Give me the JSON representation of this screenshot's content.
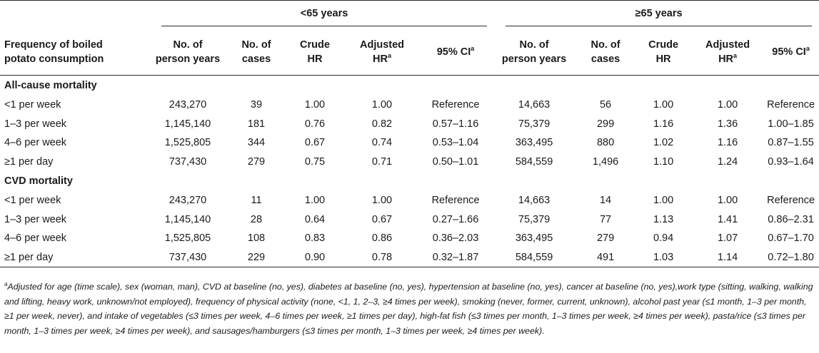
{
  "groups": {
    "under65": "<65 years",
    "over65": "≥65 years"
  },
  "headers": {
    "frequency": [
      "Frequency of boiled",
      "potato consumption"
    ],
    "person_years": [
      "No. of",
      "person years"
    ],
    "cases": [
      "No. of",
      "cases"
    ],
    "crude": [
      "Crude",
      "HR"
    ],
    "adjusted": [
      "Adjusted",
      "HR"
    ],
    "adjusted_sup": "a",
    "ci": "95% CI",
    "ci_sup": "a"
  },
  "sections": [
    {
      "title": "All-cause mortality",
      "rows": [
        {
          "label": "<1 per week",
          "u65": [
            "243,270",
            "39",
            "1.00",
            "1.00",
            "Reference"
          ],
          "o65": [
            "14,663",
            "56",
            "1.00",
            "1.00",
            "Reference"
          ]
        },
        {
          "label": "1–3 per week",
          "u65": [
            "1,145,140",
            "181",
            "0.76",
            "0.82",
            "0.57–1.16"
          ],
          "o65": [
            "75,379",
            "299",
            "1.16",
            "1.36",
            "1.00–1.85"
          ]
        },
        {
          "label": "4–6 per week",
          "u65": [
            "1,525,805",
            "344",
            "0.67",
            "0.74",
            "0.53–1.04"
          ],
          "o65": [
            "363,495",
            "880",
            "1.02",
            "1.16",
            "0.87–1.55"
          ]
        },
        {
          "label": "≥1 per day",
          "u65": [
            "737,430",
            "279",
            "0.75",
            "0.71",
            "0.50–1.01"
          ],
          "o65": [
            "584,559",
            "1,496",
            "1.10",
            "1.24",
            "0.93–1.64"
          ]
        }
      ]
    },
    {
      "title": "CVD mortality",
      "rows": [
        {
          "label": "<1 per week",
          "u65": [
            "243,270",
            "11",
            "1.00",
            "1.00",
            "Reference"
          ],
          "o65": [
            "14,663",
            "14",
            "1.00",
            "1.00",
            "Reference"
          ]
        },
        {
          "label": "1–3 per week",
          "u65": [
            "1,145,140",
            "28",
            "0.64",
            "0.67",
            "0.27–1.66"
          ],
          "o65": [
            "75,379",
            "77",
            "1.13",
            "1.41",
            "0.86–2.31"
          ]
        },
        {
          "label": "4–6 per week",
          "u65": [
            "1,525,805",
            "108",
            "0.83",
            "0.86",
            "0.36–2.03"
          ],
          "o65": [
            "363,495",
            "279",
            "0.94",
            "1.07",
            "0.67–1.70"
          ]
        },
        {
          "label": "≥1 per day",
          "u65": [
            "737,430",
            "229",
            "0.90",
            "0.78",
            "0.32–1.87"
          ],
          "o65": [
            "584,559",
            "491",
            "1.03",
            "1.14",
            "0.72–1.80"
          ]
        }
      ]
    }
  ],
  "footnote": {
    "marker": "a",
    "text": "Adjusted for age (time scale), sex (woman, man), CVD at baseline (no, yes), diabetes at baseline (no, yes), hypertension at baseline (no, yes), cancer at baseline (no, yes),work type (sitting, walking, walking and lifting, heavy work, unknown/not employed), frequency of physical activity (none, <1, 1, 2–3, ≥4 times per week), smoking (never, former, current, unknown), alcohol past year (≤1 month, 1–3 per month, ≥1 per week, never), and intake of vegetables (≤3 times per week, 4–6 times per week, ≥1 times per day), high-fat fish (≤3 times per month, 1–3 times per week, ≥4 times per week), pasta/rice (≤3 times per month, 1–3 times per week, ≥4 times per week), and sausages/hamburgers (≤3 times per month, 1–3 times per week, ≥4 times per week)."
  }
}
